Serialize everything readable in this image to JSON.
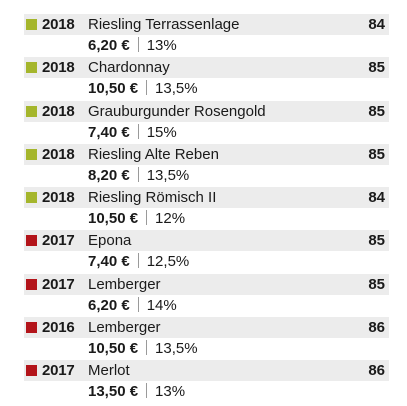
{
  "colors": {
    "white_wine_swatch": "#a5b62c",
    "red_wine_swatch": "#b3141a",
    "header_band": "#ececec"
  },
  "wines": [
    {
      "year": "2018",
      "name": "Riesling Terrassenlage",
      "score": "84",
      "price": "6,20 €",
      "abv": "13%",
      "type": "white"
    },
    {
      "year": "2018",
      "name": "Chardonnay",
      "score": "85",
      "price": "10,50 €",
      "abv": "13,5%",
      "type": "white"
    },
    {
      "year": "2018",
      "name": "Grauburgunder Rosengold",
      "score": "85",
      "price": "7,40 €",
      "abv": "15%",
      "type": "white"
    },
    {
      "year": "2018",
      "name": "Riesling Alte Reben",
      "score": "85",
      "price": "8,20 €",
      "abv": "13,5%",
      "type": "white"
    },
    {
      "year": "2018",
      "name": "Riesling Römisch II",
      "score": "84",
      "price": "10,50 €",
      "abv": "12%",
      "type": "white"
    },
    {
      "year": "2017",
      "name": "Epona",
      "score": "85",
      "price": "7,40 €",
      "abv": "12,5%",
      "type": "red"
    },
    {
      "year": "2017",
      "name": "Lemberger",
      "score": "85",
      "price": "6,20 €",
      "abv": "14%",
      "type": "red"
    },
    {
      "year": "2016",
      "name": "Lemberger",
      "score": "86",
      "price": "10,50 €",
      "abv": "13,5%",
      "type": "red"
    },
    {
      "year": "2017",
      "name": "Merlot",
      "score": "86",
      "price": "13,50 €",
      "abv": "13%",
      "type": "red"
    }
  ]
}
